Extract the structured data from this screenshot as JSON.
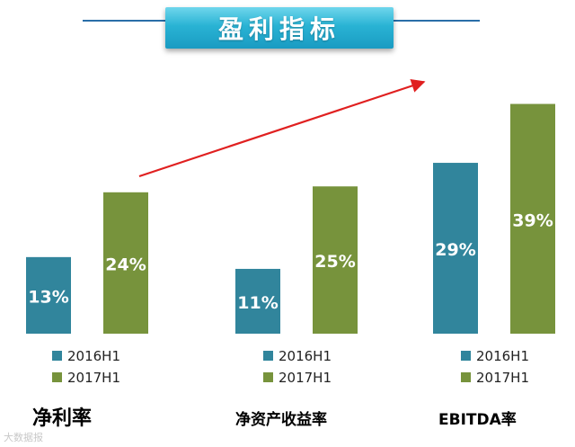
{
  "title": "盈利指标",
  "watermark": "大数据报",
  "colors": {
    "2016H1": "#31859c",
    "2017H1": "#77933c",
    "arrow": "#e02020"
  },
  "chart_data": [
    {
      "type": "bar",
      "category": "净利率",
      "series": [
        {
          "name": "2016H1",
          "value": 13,
          "label": "13%"
        },
        {
          "name": "2017H1",
          "value": 24,
          "label": "24%"
        }
      ]
    },
    {
      "type": "bar",
      "category": "净资产收益率",
      "series": [
        {
          "name": "2016H1",
          "value": 11,
          "label": "11%"
        },
        {
          "name": "2017H1",
          "value": 25,
          "label": "25%"
        }
      ]
    },
    {
      "type": "bar",
      "category": "EBITDA率",
      "series": [
        {
          "name": "2016H1",
          "value": 29,
          "label": "29%"
        },
        {
          "name": "2017H1",
          "value": 39,
          "label": "39%"
        }
      ]
    }
  ]
}
